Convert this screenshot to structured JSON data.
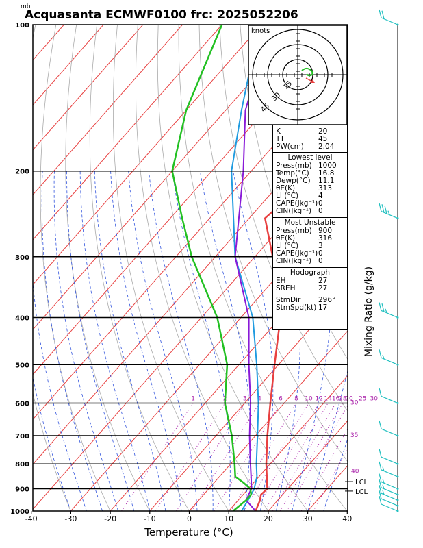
{
  "title": "Acquasanta ECMWF0100 frc: 2025052206",
  "pressure_unit_label": "mb",
  "x_axis_label": "Temperature (°C)",
  "right_axis_label": "Mixing Ratio (g/kg)",
  "hodograph": {
    "unit_label": "knots",
    "ring_labels": [
      "15",
      "30",
      "45"
    ]
  },
  "indices": [
    {
      "label": "K",
      "value": "20"
    },
    {
      "label": "TT",
      "value": "45"
    },
    {
      "label": "PW(cm)",
      "value": "2.04"
    }
  ],
  "lowest_level": {
    "header": "Lowest level",
    "rows": [
      {
        "label": "Press(mb)",
        "value": "1000"
      },
      {
        "label": "Temp(°C)",
        "value": "16.8"
      },
      {
        "label": "Dewp(°C)",
        "value": "11.1"
      },
      {
        "label": "θE(K)",
        "value": "313"
      },
      {
        "label": "LI (°C)",
        "value": "4"
      },
      {
        "label": "CAPE(Jkg⁻¹)",
        "value": "0"
      },
      {
        "label": "CIN(Jkg⁻¹)",
        "value": "0"
      }
    ]
  },
  "most_unstable": {
    "header": "Most Unstable",
    "rows": [
      {
        "label": "Press(mb)",
        "value": "900"
      },
      {
        "label": "θE(K)",
        "value": "316"
      },
      {
        "label": "LI (°C)",
        "value": "3"
      },
      {
        "label": "CAPE(Jkg⁻¹)",
        "value": "0"
      },
      {
        "label": "CIN(Jkg⁻¹)",
        "value": "0"
      }
    ]
  },
  "hodograph_info": {
    "header": "Hodograph",
    "rows": [
      {
        "label": "EH",
        "value": "27"
      },
      {
        "label": "SREH",
        "value": "27"
      },
      {
        "label": "StmDir",
        "value": "296°"
      },
      {
        "label": "StmSpd(kt)",
        "value": "17"
      }
    ]
  },
  "lcl_label": "LCL",
  "colors": {
    "temperature": "#e84040",
    "dewpoint": "#22c022",
    "parcel": "#8a1ad8",
    "wetbulb": "#1f9be0",
    "isotherm_red": "#e84040",
    "dry_adiabat": "#aaaaaa",
    "moist_adiabat": "#3355dd",
    "mixing_ratio": "#aa22aa",
    "wind_barb": "#22c0c0"
  },
  "chart_data": {
    "type": "skew-t",
    "x_ticks": [
      -40,
      -30,
      -20,
      -10,
      0,
      10,
      20,
      30,
      40
    ],
    "y_ticks": [
      100,
      200,
      300,
      400,
      500,
      600,
      700,
      800,
      900,
      1000
    ],
    "xlim": [
      -40,
      40
    ],
    "ylim": [
      1000,
      100
    ],
    "mixing_ratio_labels": [
      "1",
      "2",
      "3",
      "4",
      "6",
      "8",
      "10",
      "12",
      "14",
      "16",
      "18",
      "20",
      "25",
      "30"
    ],
    "theta_e_labels": [
      "30",
      "35",
      "40"
    ],
    "lcl_pressures": [
      870,
      910
    ],
    "temperature": {
      "p": [
        1000,
        950,
        925,
        900,
        850,
        800,
        700,
        600,
        500,
        400,
        300,
        250,
        200,
        150,
        100
      ],
      "t": [
        16.8,
        15.5,
        14.5,
        14.8,
        12.0,
        9.0,
        3.0,
        -3.5,
        -11.0,
        -20.0,
        -35.5,
        -46.0,
        -43.0,
        -40.0,
        -37.0
      ]
    },
    "dewpoint": {
      "p": [
        1000,
        950,
        925,
        900,
        875,
        850,
        800,
        700,
        600,
        500,
        400,
        300,
        250,
        200,
        150,
        100
      ],
      "t": [
        11.1,
        12.0,
        12.0,
        10.5,
        7.5,
        4.0,
        1.0,
        -6.0,
        -15.0,
        -23.0,
        -36.0,
        -56.0,
        -67.0,
        -80.0,
        -90.0,
        -100.0
      ]
    },
    "parcel": {
      "p": [
        1000,
        950,
        910,
        900,
        850,
        800,
        700,
        600,
        500,
        400,
        300,
        200,
        150,
        120,
        110
      ],
      "t": [
        16.8,
        12.0,
        11.0,
        10.8,
        8.0,
        5.0,
        -1.5,
        -8.5,
        -17.5,
        -28.0,
        -45.0,
        -62.0,
        -75.0,
        -82.0,
        -84.0
      ]
    },
    "wetbulb": {
      "p": [
        1000,
        950,
        900,
        850,
        800,
        700,
        600,
        500,
        400,
        300,
        200,
        150,
        120,
        110
      ],
      "t": [
        13.2,
        12.5,
        11.5,
        9.5,
        6.5,
        0.5,
        -6.5,
        -15.5,
        -27.0,
        -45.0,
        -65.0,
        -76.0,
        -84.0,
        -87.0
      ]
    },
    "wind_barbs": [
      {
        "p": 100,
        "speed_kt": 20
      },
      {
        "p": 250,
        "speed_kt": 35
      },
      {
        "p": 400,
        "speed_kt": 25
      },
      {
        "p": 500,
        "speed_kt": 15
      },
      {
        "p": 600,
        "speed_kt": 10
      },
      {
        "p": 700,
        "speed_kt": 10
      },
      {
        "p": 800,
        "speed_kt": 10
      },
      {
        "p": 850,
        "speed_kt": 15
      },
      {
        "p": 900,
        "speed_kt": 15
      },
      {
        "p": 925,
        "speed_kt": 15
      },
      {
        "p": 950,
        "speed_kt": 15
      },
      {
        "p": 975,
        "speed_kt": 10
      },
      {
        "p": 1000,
        "speed_kt": 10
      }
    ]
  }
}
